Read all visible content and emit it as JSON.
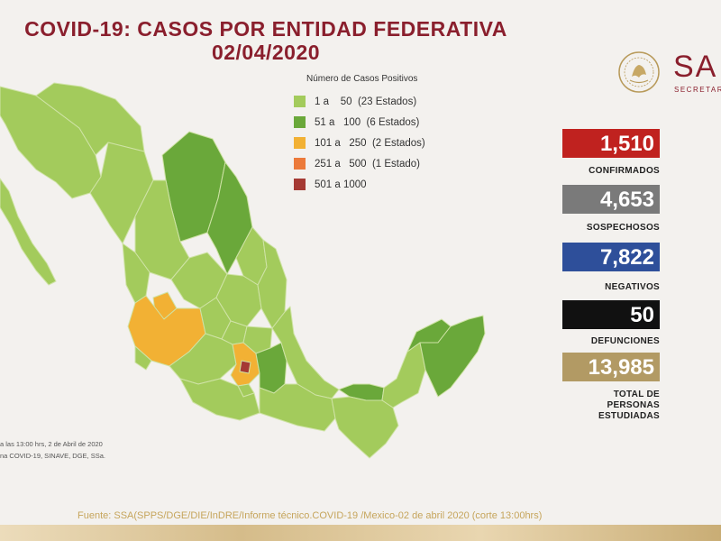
{
  "header": {
    "title_line1": "COVID-19: CASOS POR ENTIDAD FEDERATIVA",
    "title_line2": "02/04/2020"
  },
  "logo": {
    "text": "SA",
    "subtext": "SECRETAR",
    "seal_lettering": "ESTADOS UNIDOS MEXICANOS"
  },
  "legend": {
    "title": "Número de Casos Positivos",
    "items": [
      {
        "label": "1 a    50  (23 Estados)",
        "color": "#a3cb5c"
      },
      {
        "label": "51 a   100  (6 Estados)",
        "color": "#6aa83a"
      },
      {
        "label": "101 a   250  (2 Estados)",
        "color": "#f2b134"
      },
      {
        "label": "251 a   500  (1 Estado)",
        "color": "#ec7a3a"
      },
      {
        "label": "501 a 1000",
        "color": "#a53a34"
      }
    ]
  },
  "stats": {
    "confirmados": {
      "value": "1,510",
      "label": "CONFIRMADOS",
      "color": "#c0221f"
    },
    "sospechosos": {
      "value": "4,653",
      "label": "SOSPECHOSOS",
      "color": "#7a7a7a"
    },
    "negativos": {
      "value": "7,822",
      "label": "NEGATIVOS",
      "color": "#2e4f9a"
    },
    "defunciones": {
      "value": "50",
      "label": "DEFUNCIONES",
      "color": "#111111"
    },
    "estudiadas": {
      "value": "13,985",
      "label_l1": "TOTAL DE",
      "label_l2": "PERSONAS",
      "label_l3": "ESTUDIADAS",
      "color": "#b29a64"
    }
  },
  "notes": {
    "line1": "a las 13:00 hrs, 2 de Abril de 2020",
    "line2": "na COVID-19, SINAVE, DGE, SSa."
  },
  "footer": {
    "source": "Fuente: SSA(SPPS/DGE/DIE/InDRE/Informe técnico.COVID-19 /Mexico-02 de abril 2020 (corte 13:00hrs)"
  }
}
